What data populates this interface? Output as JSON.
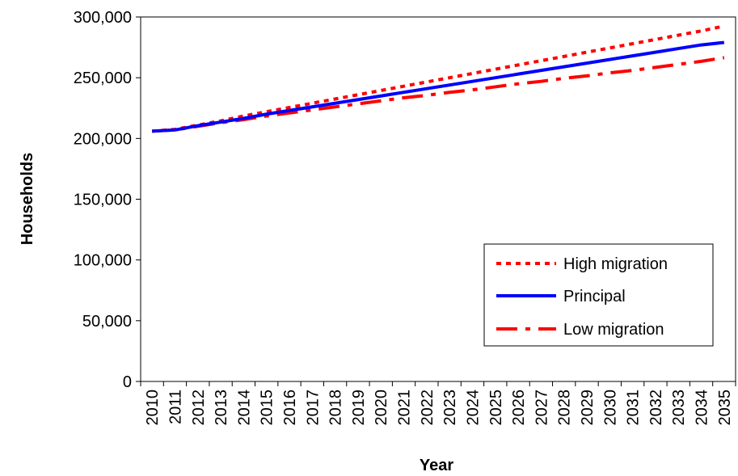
{
  "chart_data": {
    "type": "line",
    "title": "",
    "xlabel": "Year",
    "ylabel": "Households",
    "ylim": [
      0,
      300000
    ],
    "yticks": [
      0,
      50000,
      100000,
      150000,
      200000,
      250000,
      300000
    ],
    "ytick_labels": [
      "0",
      "50,000",
      "100,000",
      "150,000",
      "200,000",
      "250,000",
      "300,000"
    ],
    "x": [
      "2010",
      "2011",
      "2012",
      "2013",
      "2014",
      "2015",
      "2016",
      "2017",
      "2018",
      "2019",
      "2020",
      "2021",
      "2022",
      "2023",
      "2024",
      "2025",
      "2026",
      "2027",
      "2028",
      "2029",
      "2030",
      "2031",
      "2032",
      "2033",
      "2034",
      "2035"
    ],
    "grid": false,
    "legend_position": "bottom-right",
    "series": [
      {
        "name": "High migration",
        "color": "#ff0000",
        "style": "dotted",
        "values": [
          206000,
          207500,
          211000,
          214500,
          218500,
          222000,
          225500,
          229000,
          232500,
          236000,
          239500,
          243000,
          246500,
          250000,
          253500,
          257000,
          260500,
          264000,
          267500,
          271000,
          274500,
          278000,
          281500,
          285000,
          288500,
          292500
        ]
      },
      {
        "name": "Principal",
        "color": "#0000ff",
        "style": "solid",
        "values": [
          206000,
          207000,
          210500,
          213500,
          216500,
          220000,
          223000,
          226000,
          229000,
          232000,
          235000,
          238000,
          241000,
          244000,
          247000,
          250000,
          253000,
          256000,
          259000,
          262000,
          265000,
          268000,
          271000,
          274000,
          277000,
          279000
        ]
      },
      {
        "name": "Low migration",
        "color": "#ff0000",
        "style": "dash-dot",
        "values": [
          206000,
          207000,
          210000,
          213000,
          215500,
          218500,
          221000,
          223500,
          226000,
          228500,
          231000,
          233500,
          235500,
          238000,
          240000,
          242500,
          245000,
          247000,
          249500,
          251500,
          254000,
          256000,
          258500,
          261000,
          263500,
          266500
        ]
      }
    ]
  }
}
